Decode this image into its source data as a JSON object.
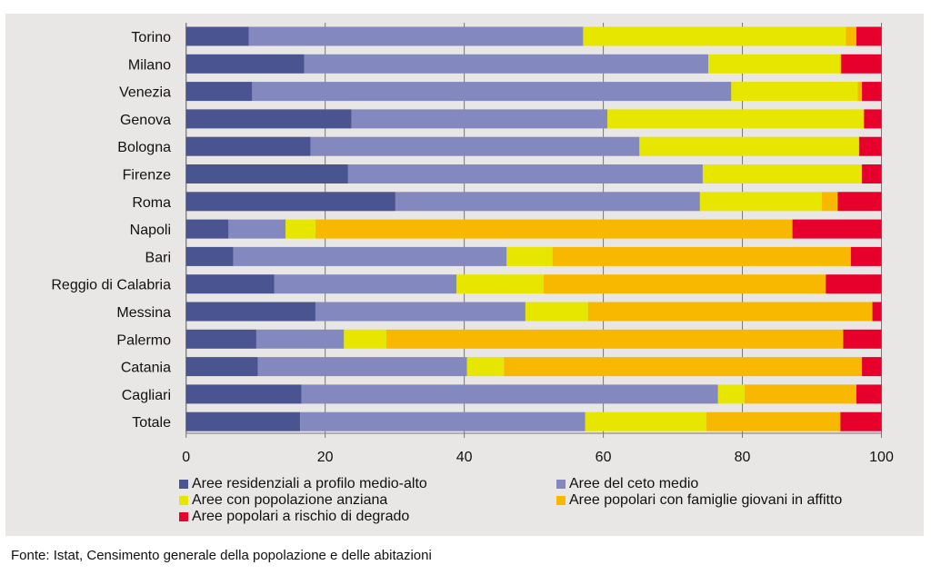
{
  "chart_data": {
    "type": "bar",
    "orientation": "horizontal",
    "stacked": true,
    "categories": [
      "Torino",
      "Milano",
      "Venezia",
      "Genova",
      "Bologna",
      "Firenze",
      "Roma",
      "Napoli",
      "Bari",
      "Reggio di Calabria",
      "Messina",
      "Palermo",
      "Catania",
      "Cagliari",
      "Totale"
    ],
    "series": [
      {
        "name": "Aree residenziali a profilo medio-alto",
        "color": "#4a5490",
        "values": [
          9.0,
          17.0,
          9.5,
          23.8,
          17.9,
          23.3,
          30.1,
          6.1,
          6.8,
          12.7,
          18.6,
          10.1,
          10.3,
          16.6,
          16.4
        ]
      },
      {
        "name": "Aree del ceto medio",
        "color": "#8389be",
        "values": [
          48.1,
          58.1,
          68.9,
          36.8,
          47.3,
          51.0,
          43.8,
          8.2,
          39.3,
          26.2,
          30.2,
          12.6,
          30.1,
          59.9,
          41.0
        ]
      },
      {
        "name": "Aree con popolazione anziana",
        "color": "#e6e600",
        "values": [
          37.8,
          18.9,
          18.2,
          36.8,
          31.5,
          22.8,
          17.5,
          4.3,
          6.6,
          12.5,
          9.0,
          6.1,
          5.3,
          3.8,
          17.4
        ]
      },
      {
        "name": "Aree popolari con famiglie giovani in affitto",
        "color": "#f9b800",
        "values": [
          1.5,
          0.2,
          0.6,
          0.1,
          0.1,
          0.1,
          2.3,
          68.6,
          42.9,
          40.6,
          40.9,
          65.7,
          51.5,
          16.1,
          19.3
        ]
      },
      {
        "name": "Aree popolari a rischio di degrado",
        "color": "#e8002d",
        "values": [
          3.6,
          5.8,
          2.8,
          2.5,
          3.2,
          2.8,
          6.3,
          12.8,
          4.4,
          8.0,
          1.3,
          5.5,
          2.8,
          3.6,
          5.9
        ]
      }
    ],
    "xlim": [
      0,
      100
    ],
    "xticks": [
      "0",
      "20",
      "40",
      "60",
      "80",
      "100"
    ],
    "grid": "vertical",
    "legend": "bottom"
  },
  "source": "Fonte: Istat, Censimento generale della popolazione e delle abitazioni"
}
